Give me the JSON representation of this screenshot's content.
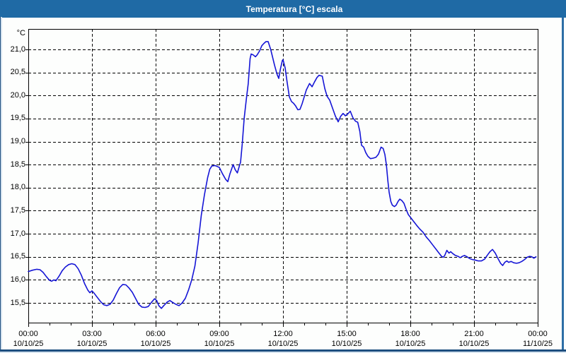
{
  "window": {
    "title": "Temperatura [°C] escala"
  },
  "colors": {
    "titlebar_bg": "#1f6aa5",
    "title_text": "#ffffff",
    "frame_dark": "#1d4e7f",
    "frame_light": "#d4e2ee",
    "frame_right": "#2d6ea6",
    "plot_bg": "#fdfefd",
    "grid": "#000000",
    "line": "#1515d6"
  },
  "chart_data": {
    "type": "line",
    "title": "Temperatura [°C] escala",
    "y_unit": "°C",
    "ylim_gridlines": [
      15.5,
      21.0
    ],
    "grid": "dashed",
    "legend": "none",
    "y_ticks": [
      {
        "value": 21.0,
        "label": "21,0"
      },
      {
        "value": 20.5,
        "label": "20,5"
      },
      {
        "value": 20.0,
        "label": "20,0"
      },
      {
        "value": 19.5,
        "label": "19,5"
      },
      {
        "value": 19.0,
        "label": "19,0"
      },
      {
        "value": 18.5,
        "label": "18,5"
      },
      {
        "value": 18.0,
        "label": "18,0"
      },
      {
        "value": 17.5,
        "label": "17,5"
      },
      {
        "value": 17.0,
        "label": "17,0"
      },
      {
        "value": 16.5,
        "label": "16,5"
      },
      {
        "value": 16.0,
        "label": "16,0"
      },
      {
        "value": 15.5,
        "label": "15,5"
      }
    ],
    "x_ticks": [
      {
        "time": "00:00",
        "date": "10/10/25"
      },
      {
        "time": "03:00",
        "date": "10/10/25"
      },
      {
        "time": "06:00",
        "date": "10/10/25"
      },
      {
        "time": "09:00",
        "date": "10/10/25"
      },
      {
        "time": "12:00",
        "date": "10/10/25"
      },
      {
        "time": "15:00",
        "date": "10/10/25"
      },
      {
        "time": "18:00",
        "date": "10/10/25"
      },
      {
        "time": "21:00",
        "date": "10/10/25"
      },
      {
        "time": "00:00",
        "date": "11/10/25"
      }
    ],
    "x_span_hours": 24,
    "series": [
      {
        "name": "Temperatura",
        "color": "#1515d6",
        "points": [
          [
            0.0,
            16.18
          ],
          [
            0.2,
            16.21
          ],
          [
            0.4,
            16.23
          ],
          [
            0.55,
            16.22
          ],
          [
            0.7,
            16.16
          ],
          [
            0.85,
            16.07
          ],
          [
            1.0,
            15.99
          ],
          [
            1.1,
            15.97
          ],
          [
            1.2,
            16.0
          ],
          [
            1.3,
            15.98
          ],
          [
            1.45,
            16.08
          ],
          [
            1.6,
            16.2
          ],
          [
            1.75,
            16.28
          ],
          [
            1.9,
            16.33
          ],
          [
            2.05,
            16.35
          ],
          [
            2.2,
            16.33
          ],
          [
            2.35,
            16.24
          ],
          [
            2.5,
            16.1
          ],
          [
            2.65,
            15.92
          ],
          [
            2.8,
            15.78
          ],
          [
            2.9,
            15.72
          ],
          [
            3.0,
            15.76
          ],
          [
            3.1,
            15.71
          ],
          [
            3.25,
            15.62
          ],
          [
            3.4,
            15.53
          ],
          [
            3.55,
            15.46
          ],
          [
            3.7,
            15.44
          ],
          [
            3.85,
            15.47
          ],
          [
            4.0,
            15.56
          ],
          [
            4.15,
            15.7
          ],
          [
            4.3,
            15.83
          ],
          [
            4.45,
            15.9
          ],
          [
            4.6,
            15.89
          ],
          [
            4.75,
            15.82
          ],
          [
            4.9,
            15.73
          ],
          [
            5.05,
            15.6
          ],
          [
            5.2,
            15.47
          ],
          [
            5.35,
            15.41
          ],
          [
            5.5,
            15.4
          ],
          [
            5.65,
            15.42
          ],
          [
            5.8,
            15.51
          ],
          [
            5.95,
            15.59
          ],
          [
            6.05,
            15.55
          ],
          [
            6.15,
            15.44
          ],
          [
            6.27,
            15.38
          ],
          [
            6.4,
            15.45
          ],
          [
            6.55,
            15.52
          ],
          [
            6.67,
            15.55
          ],
          [
            6.8,
            15.51
          ],
          [
            6.95,
            15.47
          ],
          [
            7.1,
            15.44
          ],
          [
            7.25,
            15.5
          ],
          [
            7.4,
            15.6
          ],
          [
            7.55,
            15.78
          ],
          [
            7.7,
            16.0
          ],
          [
            7.85,
            16.3
          ],
          [
            8.0,
            16.8
          ],
          [
            8.15,
            17.4
          ],
          [
            8.3,
            17.85
          ],
          [
            8.45,
            18.22
          ],
          [
            8.55,
            18.4
          ],
          [
            8.65,
            18.47
          ],
          [
            8.8,
            18.48
          ],
          [
            8.9,
            18.46
          ],
          [
            9.0,
            18.44
          ],
          [
            9.15,
            18.3
          ],
          [
            9.3,
            18.18
          ],
          [
            9.4,
            18.13
          ],
          [
            9.5,
            18.3
          ],
          [
            9.65,
            18.5
          ],
          [
            9.75,
            18.39
          ],
          [
            9.85,
            18.32
          ],
          [
            9.95,
            18.48
          ],
          [
            10.0,
            18.55
          ],
          [
            10.08,
            18.95
          ],
          [
            10.17,
            19.5
          ],
          [
            10.28,
            19.95
          ],
          [
            10.36,
            20.25
          ],
          [
            10.45,
            20.8
          ],
          [
            10.5,
            20.9
          ],
          [
            10.6,
            20.88
          ],
          [
            10.7,
            20.84
          ],
          [
            10.78,
            20.88
          ],
          [
            10.9,
            20.97
          ],
          [
            11.0,
            21.08
          ],
          [
            11.1,
            21.13
          ],
          [
            11.2,
            21.17
          ],
          [
            11.3,
            21.17
          ],
          [
            11.42,
            21.0
          ],
          [
            11.5,
            20.85
          ],
          [
            11.6,
            20.66
          ],
          [
            11.72,
            20.46
          ],
          [
            11.8,
            20.37
          ],
          [
            11.88,
            20.58
          ],
          [
            11.97,
            20.76
          ],
          [
            12.0,
            20.78
          ],
          [
            12.1,
            20.6
          ],
          [
            12.2,
            20.27
          ],
          [
            12.3,
            19.97
          ],
          [
            12.4,
            19.87
          ],
          [
            12.5,
            19.83
          ],
          [
            12.6,
            19.77
          ],
          [
            12.7,
            19.69
          ],
          [
            12.8,
            19.7
          ],
          [
            12.9,
            19.82
          ],
          [
            13.0,
            19.97
          ],
          [
            13.1,
            20.12
          ],
          [
            13.25,
            20.26
          ],
          [
            13.37,
            20.19
          ],
          [
            13.48,
            20.29
          ],
          [
            13.6,
            20.39
          ],
          [
            13.7,
            20.44
          ],
          [
            13.85,
            20.42
          ],
          [
            13.97,
            20.15
          ],
          [
            14.08,
            19.98
          ],
          [
            14.2,
            19.9
          ],
          [
            14.33,
            19.73
          ],
          [
            14.47,
            19.55
          ],
          [
            14.6,
            19.43
          ],
          [
            14.72,
            19.55
          ],
          [
            14.83,
            19.61
          ],
          [
            14.94,
            19.56
          ],
          [
            15.05,
            19.6
          ],
          [
            15.17,
            19.66
          ],
          [
            15.3,
            19.51
          ],
          [
            15.42,
            19.44
          ],
          [
            15.52,
            19.42
          ],
          [
            15.62,
            19.22
          ],
          [
            15.7,
            18.92
          ],
          [
            15.8,
            18.88
          ],
          [
            15.9,
            18.76
          ],
          [
            16.0,
            18.68
          ],
          [
            16.12,
            18.63
          ],
          [
            16.25,
            18.64
          ],
          [
            16.38,
            18.66
          ],
          [
            16.5,
            18.73
          ],
          [
            16.62,
            18.88
          ],
          [
            16.72,
            18.85
          ],
          [
            16.8,
            18.72
          ],
          [
            16.87,
            18.5
          ],
          [
            16.94,
            18.15
          ],
          [
            17.0,
            17.9
          ],
          [
            17.08,
            17.7
          ],
          [
            17.15,
            17.62
          ],
          [
            17.25,
            17.59
          ],
          [
            17.33,
            17.62
          ],
          [
            17.42,
            17.7
          ],
          [
            17.5,
            17.75
          ],
          [
            17.6,
            17.72
          ],
          [
            17.7,
            17.66
          ],
          [
            17.8,
            17.53
          ],
          [
            17.9,
            17.42
          ],
          [
            18.0,
            17.36
          ],
          [
            18.15,
            17.27
          ],
          [
            18.3,
            17.18
          ],
          [
            18.45,
            17.1
          ],
          [
            18.6,
            17.03
          ],
          [
            18.75,
            16.93
          ],
          [
            18.9,
            16.85
          ],
          [
            19.05,
            16.76
          ],
          [
            19.2,
            16.67
          ],
          [
            19.35,
            16.58
          ],
          [
            19.47,
            16.51
          ],
          [
            19.55,
            16.49
          ],
          [
            19.62,
            16.53
          ],
          [
            19.72,
            16.64
          ],
          [
            19.82,
            16.58
          ],
          [
            19.9,
            16.61
          ],
          [
            20.0,
            16.57
          ],
          [
            20.12,
            16.53
          ],
          [
            20.25,
            16.51
          ],
          [
            20.35,
            16.48
          ],
          [
            20.45,
            16.51
          ],
          [
            20.55,
            16.53
          ],
          [
            20.67,
            16.5
          ],
          [
            20.8,
            16.46
          ],
          [
            20.92,
            16.44
          ],
          [
            21.05,
            16.43
          ],
          [
            21.2,
            16.41
          ],
          [
            21.35,
            16.41
          ],
          [
            21.5,
            16.45
          ],
          [
            21.62,
            16.53
          ],
          [
            21.75,
            16.61
          ],
          [
            21.87,
            16.66
          ],
          [
            22.0,
            16.58
          ],
          [
            22.12,
            16.47
          ],
          [
            22.25,
            16.36
          ],
          [
            22.35,
            16.31
          ],
          [
            22.45,
            16.38
          ],
          [
            22.55,
            16.41
          ],
          [
            22.63,
            16.38
          ],
          [
            22.75,
            16.4
          ],
          [
            22.87,
            16.37
          ],
          [
            23.0,
            16.36
          ],
          [
            23.12,
            16.37
          ],
          [
            23.25,
            16.4
          ],
          [
            23.38,
            16.44
          ],
          [
            23.5,
            16.49
          ],
          [
            23.62,
            16.51
          ],
          [
            23.72,
            16.5
          ],
          [
            23.82,
            16.47
          ],
          [
            23.92,
            16.5
          ]
        ]
      }
    ]
  }
}
